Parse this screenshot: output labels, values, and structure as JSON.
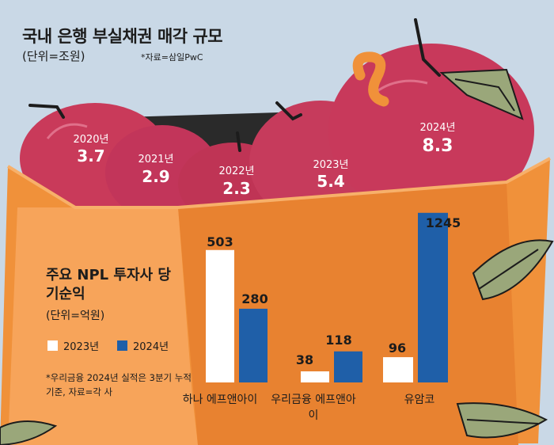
{
  "colors": {
    "background": "#c9d8e6",
    "basket": "#f0913a",
    "basket_dark": "#e07624",
    "apple": "#c93a5a",
    "series_2023": "#ffffff",
    "series_2024": "#1f5fa8"
  },
  "header": {
    "title": "국내 은행 부실채권 매각 규모",
    "unit": "(단위=조원)",
    "source": "*자료=삼일PwC"
  },
  "sub": {
    "title": "주요 NPL 투자사 당기순익",
    "unit": "(단위=억원)",
    "legend": [
      "2023년",
      "2024년"
    ],
    "note": "*우리금융 2024년 실적은 3분기 누적 기준, 자료=각 사"
  },
  "chart_data": [
    {
      "type": "table",
      "title": "국내 은행 부실채권 매각 규모",
      "unit": "(단위=조원)",
      "categories": [
        "2020년",
        "2021년",
        "2022년",
        "2023년",
        "2024년"
      ],
      "values": [
        3.7,
        2.9,
        2.3,
        5.4,
        8.3
      ]
    },
    {
      "type": "bar",
      "title": "주요 NPL 투자사 당기순익",
      "unit": "(단위=억원)",
      "categories": [
        "하나 에프앤아이",
        "우리금융 에프앤아이",
        "유암코"
      ],
      "series": [
        {
          "name": "2023년",
          "values": [
            503,
            38,
            96
          ]
        },
        {
          "name": "2024년",
          "values": [
            280,
            118,
            1245
          ]
        }
      ],
      "legend": "top-left"
    }
  ]
}
